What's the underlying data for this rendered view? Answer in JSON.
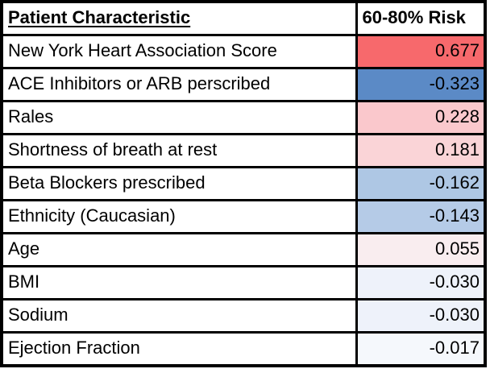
{
  "table": {
    "header": {
      "characteristic": "Patient Characteristic",
      "risk": "60-80% Risk"
    },
    "rows": [
      {
        "label": "New York Heart Association Score",
        "value": "0.677",
        "cell_color": "#F7696C"
      },
      {
        "label": "ACE Inhibitors or ARB perscribed",
        "value": "-0.323",
        "cell_color": "#5B8AC6"
      },
      {
        "label": "Rales",
        "value": "0.228",
        "cell_color": "#FAC8CC"
      },
      {
        "label": "Shortness of breath at rest",
        "value": "0.181",
        "cell_color": "#FAD4D7"
      },
      {
        "label": "Beta Blockers prescribed",
        "value": "-0.162",
        "cell_color": "#AEC7E4"
      },
      {
        "label": "Ethnicity (Caucasian)",
        "value": "-0.143",
        "cell_color": "#B5CBE7"
      },
      {
        "label": "Age",
        "value": "0.055",
        "cell_color": "#F9EDEF"
      },
      {
        "label": "BMI",
        "value": "-0.030",
        "cell_color": "#EEF2FA"
      },
      {
        "label": "Sodium",
        "value": "-0.030",
        "cell_color": "#EEF2FA"
      },
      {
        "label": "Ejection Fraction",
        "value": "-0.017",
        "cell_color": "#F5F8FC"
      }
    ],
    "colors": {
      "positive_max": "#F7696C",
      "negative_max": "#5B8AC6",
      "neutral": "#FFFFFF",
      "border": "#000000"
    }
  },
  "chart_data": {
    "type": "table",
    "title": "",
    "columns": [
      "Patient Characteristic",
      "60-80% Risk"
    ],
    "categories": [
      "New York Heart Association Score",
      "ACE Inhibitors or ARB perscribed",
      "Rales",
      "Shortness of breath at rest",
      "Beta Blockers prescribed",
      "Ethnicity (Caucasian)",
      "Age",
      "BMI",
      "Sodium",
      "Ejection Fraction"
    ],
    "values": [
      0.677,
      -0.323,
      0.228,
      0.181,
      -0.162,
      -0.143,
      0.055,
      -0.03,
      -0.03,
      -0.017
    ],
    "legend_position": "none",
    "notes": "Correlation-style values with red-white-blue conditional formatting; positive values shaded red, negative shaded blue, intensity scales with magnitude."
  }
}
